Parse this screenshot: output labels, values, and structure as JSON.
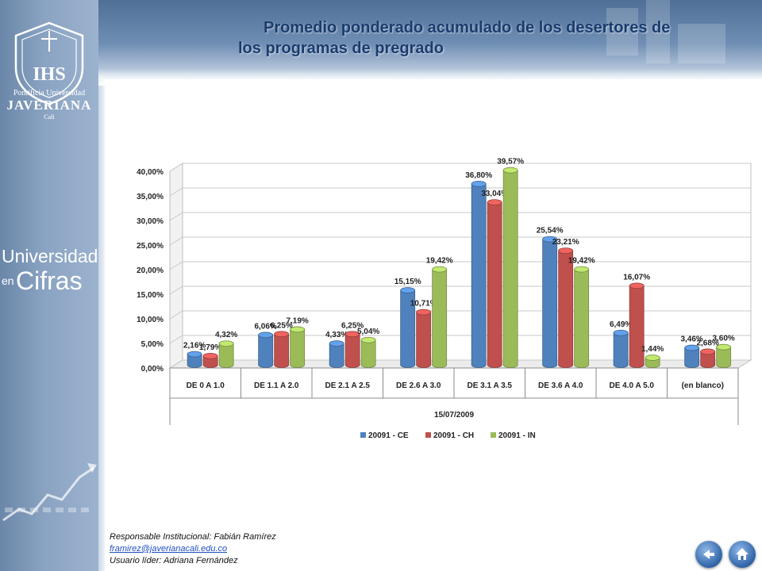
{
  "header": {
    "title_line1": "Promedio  ponderado acumulado de los desertores de",
    "title_line2": "los programas de pregrado"
  },
  "sidebar": {
    "logo_text_small": "Pontificia Universidad",
    "logo_text_big": "JAVERIANA",
    "logo_text_city": "Cali",
    "brand_universidad": "Universidad",
    "brand_en": "en",
    "brand_cifras": "Cifras"
  },
  "chart_data": {
    "type": "bar",
    "categories": [
      "DE 0 A 1.0",
      "DE 1.1 A 2.0",
      "DE 2.1 A 2.5",
      "DE 2.6 A 3.0",
      "DE 3.1 A 3.5",
      "DE 3.6 A 4.0",
      "DE 4.0 A 5.0",
      "(en blanco)"
    ],
    "series": [
      {
        "name": "20091 - CE",
        "color": "#4f81bd",
        "values": [
          2.16,
          6.06,
          4.33,
          15.15,
          36.8,
          25.54,
          6.49,
          3.46
        ],
        "labels": [
          "2,16%",
          "6,06%",
          "4,33%",
          "15,15%",
          "36,80%",
          "25,54%",
          "6,49%",
          "3,46%"
        ]
      },
      {
        "name": "20091 - CH",
        "color": "#c0504d",
        "values": [
          1.79,
          6.25,
          6.25,
          10.71,
          33.04,
          23.21,
          16.07,
          2.68
        ],
        "labels": [
          "1,79%",
          "6,25%",
          "6,25%",
          "10,71%",
          "33,04%",
          "23,21%",
          "16,07%",
          "2,68%"
        ]
      },
      {
        "name": "20091 - IN",
        "color": "#9bbb59",
        "values": [
          4.32,
          7.19,
          5.04,
          19.42,
          39.57,
          19.42,
          1.44,
          3.6
        ],
        "labels": [
          "4,32%",
          "7,19%",
          "5,04%",
          "19,42%",
          "39,57%",
          "19,42%",
          "1,44%",
          "3,60%"
        ]
      }
    ],
    "yticks": [
      "0,00%",
      "5,00%",
      "10,00%",
      "15,00%",
      "20,00%",
      "25,00%",
      "30,00%",
      "35,00%",
      "40,00%"
    ],
    "ylim": [
      0,
      40
    ],
    "xlabel": "15/07/2009",
    "legend_position": "bottom",
    "grid": true
  },
  "footer": {
    "responsable": "Responsable  Institucional: Fabián Ramírez",
    "email": "framirez@javerianacali.edu.co",
    "usuario": "Usuario líder: Adriana Fernández"
  },
  "nav": {
    "back_icon": "back-arrow-icon",
    "home_icon": "home-icon"
  }
}
